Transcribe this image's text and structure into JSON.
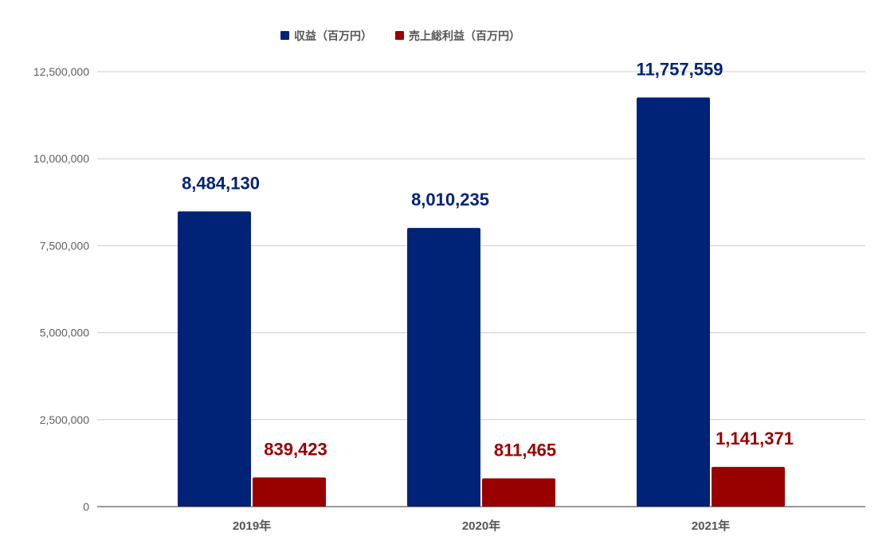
{
  "chart_data": {
    "type": "bar",
    "categories": [
      "2019年",
      "2020年",
      "2021年"
    ],
    "series": [
      {
        "name": "収益（百万円）",
        "color": "#002277",
        "values": [
          8484130,
          8010235,
          11757559
        ]
      },
      {
        "name": "売上総利益（百万円）",
        "color": "#990000",
        "values": [
          839423,
          811465,
          1141371
        ]
      }
    ],
    "data_labels": [
      [
        "8,484,130",
        "8,010,235",
        "11,757,559"
      ],
      [
        "839,423",
        "811,465",
        "1,141,371"
      ]
    ],
    "ylim": [
      0,
      12500000
    ],
    "yticks": [
      0,
      2500000,
      5000000,
      7500000,
      10000000,
      12500000
    ],
    "ytick_labels": [
      "0",
      "2,500,000",
      "5,000,000",
      "7,500,000",
      "10,000,000",
      "12,500,000"
    ],
    "grid": true,
    "legend_position": "top-center",
    "title": "",
    "xlabel": "",
    "ylabel": ""
  }
}
